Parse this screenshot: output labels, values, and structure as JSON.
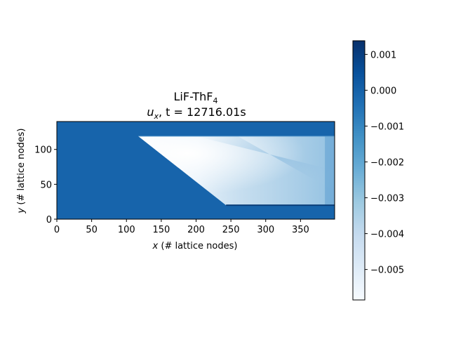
{
  "chart_data": {
    "type": "heatmap",
    "title": {
      "line1_main": "LiF-ThF",
      "line1_sub": "4",
      "line2_var": "u",
      "line2_var_sub": "x",
      "line2_rest": ", t = 12716.01s"
    },
    "xlabel": {
      "var": "x",
      "text": " (# lattice nodes)"
    },
    "ylabel": {
      "var": "y",
      "text": " (# lattice nodes)"
    },
    "xlim": [
      0,
      399
    ],
    "ylim": [
      0,
      140
    ],
    "xticks": [
      0,
      50,
      100,
      150,
      200,
      250,
      300,
      350
    ],
    "yticks": [
      0,
      50,
      100
    ],
    "colormap": "Blues",
    "colorbar": {
      "range": [
        -0.00585,
        0.00138
      ],
      "ticks": [
        0.001,
        0.0,
        -0.001,
        -0.002,
        -0.003,
        -0.004,
        -0.005
      ],
      "tick_labels": [
        "0.001",
        "0.000",
        "−0.001",
        "−0.002",
        "−0.003",
        "−0.004",
        "−0.005"
      ]
    },
    "background_value": 0.0,
    "region": {
      "description_values": "triangular/trapezoid low-velocity wake region",
      "top_y": 119,
      "bottom_y": 20,
      "left_top_x": 117,
      "left_bottom_x": 243,
      "right_x": 399
    },
    "field_samples": [
      {
        "x": 160,
        "y": 110,
        "value": -0.0058
      },
      {
        "x": 200,
        "y": 100,
        "value": -0.0052
      },
      {
        "x": 260,
        "y": 85,
        "value": -0.004
      },
      {
        "x": 330,
        "y": 60,
        "value": -0.0038
      },
      {
        "x": 380,
        "y": 90,
        "value": -0.0025
      },
      {
        "x": 300,
        "y": 35,
        "value": -0.003
      }
    ],
    "colors": {
      "background": "#1764ab",
      "light": "#f5f9fe",
      "mid": "#6aaed6",
      "dark": "#08306b"
    }
  }
}
